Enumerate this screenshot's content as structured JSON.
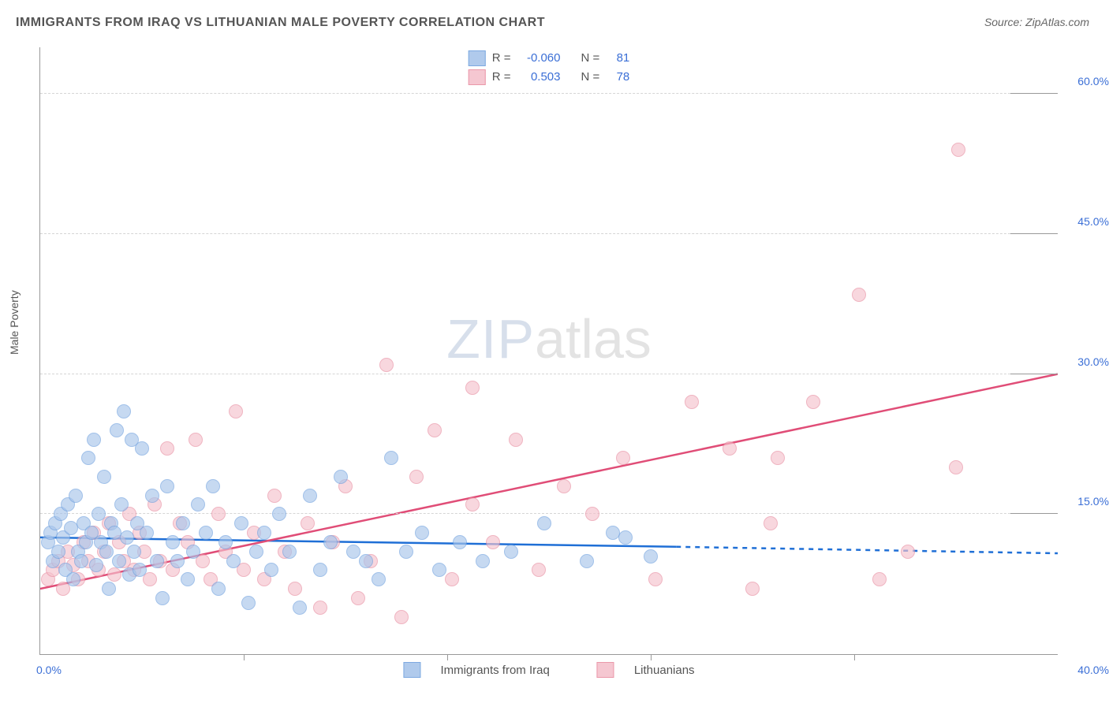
{
  "title": "IMMIGRANTS FROM IRAQ VS LITHUANIAN MALE POVERTY CORRELATION CHART",
  "source": "Source: ZipAtlas.com",
  "ylabel": "Male Poverty",
  "watermark_zip": "ZIP",
  "watermark_atlas": "atlas",
  "chart": {
    "type": "scatter",
    "xlim": [
      0,
      40
    ],
    "ylim": [
      0,
      65
    ],
    "x_tick_labels": {
      "0": "0.0%",
      "40": "40.0%"
    },
    "y_ticks": [
      15,
      30,
      45,
      60
    ],
    "y_tick_labels": {
      "15": "15.0%",
      "30": "30.0%",
      "45": "45.0%",
      "60": "60.0%"
    },
    "x_minor_ticks": [
      8,
      16,
      24,
      32
    ],
    "background": "#ffffff",
    "grid_color": "#d5d5d5",
    "axis_color": "#999999",
    "tick_label_color": "#3b6fd6"
  },
  "series": [
    {
      "name": "Immigrants from Iraq",
      "short": "series_a",
      "fill": "#a8c5eb",
      "stroke": "#6fa0de",
      "line_color": "#1f6fd6",
      "R": "-0.060",
      "N": "81",
      "trend": {
        "x1": 0,
        "y1": 12.5,
        "x2": 25,
        "y2": 11.5,
        "dash_x2": 40,
        "dash_y2": 10.8
      },
      "points": [
        [
          0.3,
          12
        ],
        [
          0.4,
          13
        ],
        [
          0.5,
          10
        ],
        [
          0.6,
          14
        ],
        [
          0.7,
          11
        ],
        [
          0.8,
          15
        ],
        [
          0.9,
          12.5
        ],
        [
          1.0,
          9
        ],
        [
          1.1,
          16
        ],
        [
          1.2,
          13.5
        ],
        [
          1.3,
          8
        ],
        [
          1.4,
          17
        ],
        [
          1.5,
          11
        ],
        [
          1.6,
          10
        ],
        [
          1.7,
          14
        ],
        [
          1.8,
          12
        ],
        [
          1.9,
          21
        ],
        [
          2.0,
          13
        ],
        [
          2.1,
          23
        ],
        [
          2.2,
          9.5
        ],
        [
          2.3,
          15
        ],
        [
          2.4,
          12
        ],
        [
          2.5,
          19
        ],
        [
          2.6,
          11
        ],
        [
          2.7,
          7
        ],
        [
          2.8,
          14
        ],
        [
          2.9,
          13
        ],
        [
          3.0,
          24
        ],
        [
          3.1,
          10
        ],
        [
          3.2,
          16
        ],
        [
          3.3,
          26
        ],
        [
          3.4,
          12.5
        ],
        [
          3.5,
          8.5
        ],
        [
          3.6,
          23
        ],
        [
          3.7,
          11
        ],
        [
          3.8,
          14
        ],
        [
          3.9,
          9
        ],
        [
          4.0,
          22
        ],
        [
          4.2,
          13
        ],
        [
          4.4,
          17
        ],
        [
          4.6,
          10
        ],
        [
          4.8,
          6
        ],
        [
          5.0,
          18
        ],
        [
          5.2,
          12
        ],
        [
          5.4,
          10
        ],
        [
          5.6,
          14
        ],
        [
          5.8,
          8
        ],
        [
          6.0,
          11
        ],
        [
          6.2,
          16
        ],
        [
          6.5,
          13
        ],
        [
          6.8,
          18
        ],
        [
          7.0,
          7
        ],
        [
          7.3,
          12
        ],
        [
          7.6,
          10
        ],
        [
          7.9,
          14
        ],
        [
          8.2,
          5.5
        ],
        [
          8.5,
          11
        ],
        [
          8.8,
          13
        ],
        [
          9.1,
          9
        ],
        [
          9.4,
          15
        ],
        [
          9.8,
          11
        ],
        [
          10.2,
          5
        ],
        [
          10.6,
          17
        ],
        [
          11.0,
          9
        ],
        [
          11.4,
          12
        ],
        [
          11.8,
          19
        ],
        [
          12.3,
          11
        ],
        [
          12.8,
          10
        ],
        [
          13.3,
          8
        ],
        [
          13.8,
          21
        ],
        [
          14.4,
          11
        ],
        [
          15.0,
          13
        ],
        [
          15.7,
          9
        ],
        [
          16.5,
          12
        ],
        [
          17.4,
          10
        ],
        [
          18.5,
          11
        ],
        [
          19.8,
          14
        ],
        [
          21.5,
          10
        ],
        [
          23.0,
          12.5
        ],
        [
          24.0,
          10.5
        ],
        [
          22.5,
          13
        ]
      ]
    },
    {
      "name": "Lithuanians",
      "short": "series_b",
      "fill": "#f5c2cd",
      "stroke": "#e88da0",
      "line_color": "#e04d77",
      "R": "0.503",
      "N": "78",
      "trend": {
        "x1": 0,
        "y1": 7,
        "x2": 40,
        "y2": 30
      },
      "points": [
        [
          0.3,
          8
        ],
        [
          0.5,
          9
        ],
        [
          0.7,
          10
        ],
        [
          0.9,
          7
        ],
        [
          1.1,
          11
        ],
        [
          1.3,
          9.5
        ],
        [
          1.5,
          8
        ],
        [
          1.7,
          12
        ],
        [
          1.9,
          10
        ],
        [
          2.1,
          13
        ],
        [
          2.3,
          9
        ],
        [
          2.5,
          11
        ],
        [
          2.7,
          14
        ],
        [
          2.9,
          8.5
        ],
        [
          3.1,
          12
        ],
        [
          3.3,
          10
        ],
        [
          3.5,
          15
        ],
        [
          3.7,
          9
        ],
        [
          3.9,
          13
        ],
        [
          4.1,
          11
        ],
        [
          4.3,
          8
        ],
        [
          4.5,
          16
        ],
        [
          4.7,
          10
        ],
        [
          5.0,
          22
        ],
        [
          5.2,
          9
        ],
        [
          5.5,
          14
        ],
        [
          5.8,
          12
        ],
        [
          6.1,
          23
        ],
        [
          6.4,
          10
        ],
        [
          6.7,
          8
        ],
        [
          7.0,
          15
        ],
        [
          7.3,
          11
        ],
        [
          7.7,
          26
        ],
        [
          8.0,
          9
        ],
        [
          8.4,
          13
        ],
        [
          8.8,
          8
        ],
        [
          9.2,
          17
        ],
        [
          9.6,
          11
        ],
        [
          10.0,
          7
        ],
        [
          10.5,
          14
        ],
        [
          11.0,
          5
        ],
        [
          11.5,
          12
        ],
        [
          12.0,
          18
        ],
        [
          12.5,
          6
        ],
        [
          13.0,
          10
        ],
        [
          13.6,
          31
        ],
        [
          14.2,
          4
        ],
        [
          14.8,
          19
        ],
        [
          15.5,
          24
        ],
        [
          16.2,
          8
        ],
        [
          17.0,
          16
        ],
        [
          17.0,
          28.5
        ],
        [
          17.8,
          12
        ],
        [
          18.7,
          23
        ],
        [
          19.6,
          9
        ],
        [
          20.6,
          18
        ],
        [
          21.7,
          15
        ],
        [
          22.9,
          21
        ],
        [
          24.2,
          8
        ],
        [
          25.6,
          27
        ],
        [
          27.1,
          22
        ],
        [
          28.0,
          7
        ],
        [
          28.7,
          14
        ],
        [
          29.0,
          21
        ],
        [
          30.4,
          27
        ],
        [
          32.2,
          38.5
        ],
        [
          33.0,
          8
        ],
        [
          34.1,
          11
        ],
        [
          36.1,
          54
        ],
        [
          36.0,
          20
        ]
      ]
    }
  ],
  "legend_top": {
    "r_label": "R =",
    "n_label": "N ="
  },
  "legend_bottom": {
    "label_a": "Immigrants from Iraq",
    "label_b": "Lithuanians"
  }
}
